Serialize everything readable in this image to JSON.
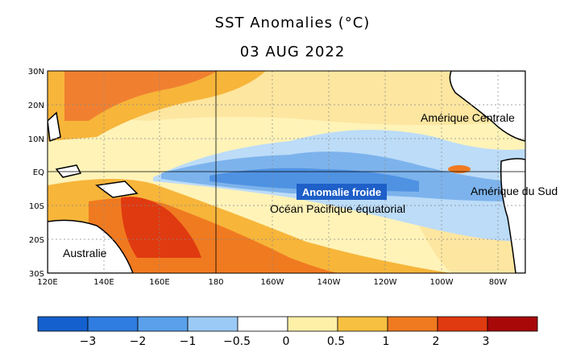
{
  "title": "SST Anomalies (°C)",
  "date": "03 AUG 2022",
  "map": {
    "lat_labels": [
      "30N",
      "20N",
      "10N",
      "EQ",
      "10S",
      "20S",
      "30S"
    ],
    "lon_labels": [
      "120E",
      "140E",
      "160E",
      "180",
      "160W",
      "140W",
      "120W",
      "100W",
      "80W"
    ],
    "annotations": {
      "amerique_centrale": "Amérique Centrale",
      "amerique_sud": "Amérique du Sud",
      "anomalie": "Anomalie froide",
      "ocean": "Océan Pacifique équatorial",
      "australie": "Australie"
    }
  },
  "colorbar": {
    "labels": [
      "−3",
      "−2",
      "−1",
      "−0.5",
      "0",
      "0.5",
      "1",
      "2",
      "3"
    ],
    "colors": [
      "#1560cf",
      "#2f7de0",
      "#5aa0ea",
      "#9ccaf6",
      "#ffffff",
      "#fff0a8",
      "#f8c040",
      "#f07a20",
      "#e03a10",
      "#a80808"
    ]
  }
}
